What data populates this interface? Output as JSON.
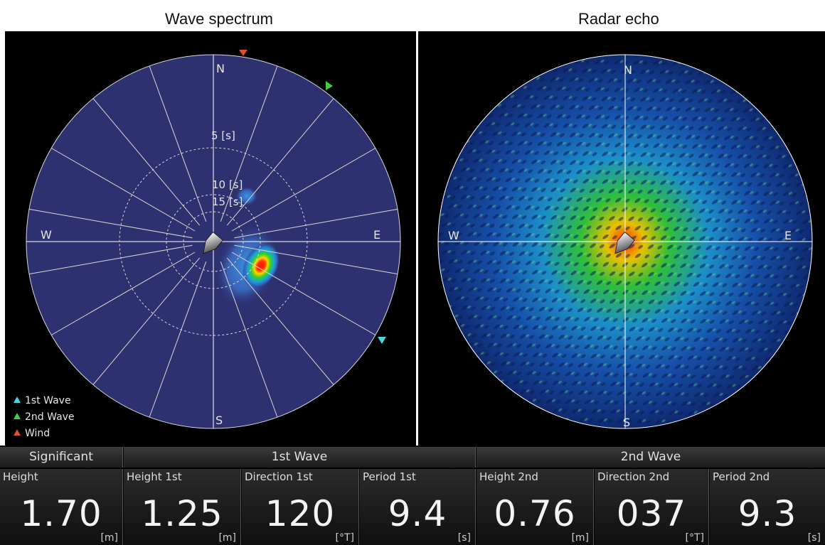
{
  "titles": {
    "left": "Wave spectrum",
    "right": "Radar echo"
  },
  "compass": {
    "n": "N",
    "s": "S",
    "e": "E",
    "w": "W"
  },
  "period_rings": [
    "5 [s]",
    "10 [s]",
    "15 [s]"
  ],
  "legend": [
    {
      "label": "1st Wave",
      "color": "#4fd1e0"
    },
    {
      "label": "2nd Wave",
      "color": "#3fcf3f"
    },
    {
      "label": "Wind",
      "color": "#e0502a"
    }
  ],
  "colors": {
    "spectrum_bg": "#2e3170",
    "grid": "#d8d8d8",
    "peak": "#ff1a00"
  },
  "table": {
    "groups": {
      "significant": "Significant",
      "first": "1st Wave",
      "second": "2nd Wave"
    },
    "cells": [
      {
        "label": "Height",
        "value": "1.70",
        "unit": "[m]"
      },
      {
        "label": "Height 1st",
        "value": "1.25",
        "unit": "[m]"
      },
      {
        "label": "Direction 1st",
        "value": "120",
        "unit": "[°T]"
      },
      {
        "label": "Period 1st",
        "value": "9.4",
        "unit": "[s]"
      },
      {
        "label": "Height 2nd",
        "value": "0.76",
        "unit": "[m]"
      },
      {
        "label": "Direction 2nd",
        "value": "037",
        "unit": "[°T]"
      },
      {
        "label": "Period 2nd",
        "value": "9.3",
        "unit": "[s]"
      }
    ]
  }
}
